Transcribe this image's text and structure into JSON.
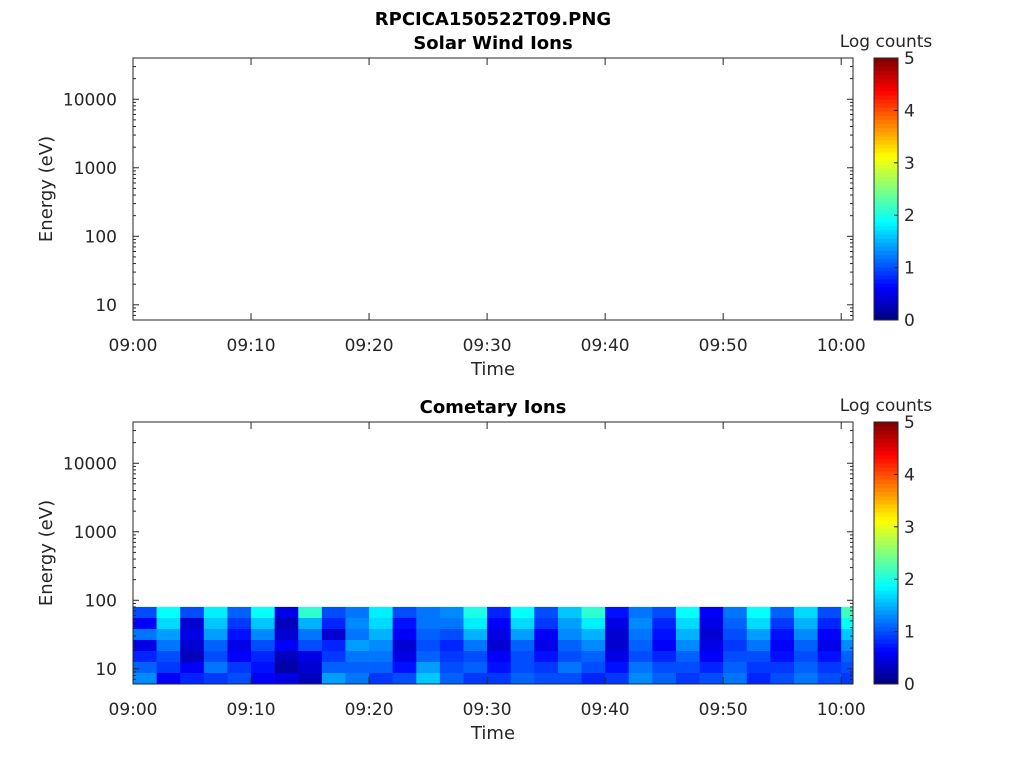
{
  "figure": {
    "filename": "RPCICA150522T09.PNG"
  },
  "chart_data": [
    {
      "type": "heatmap",
      "title": "Solar Wind Ions",
      "xlabel": "Time",
      "ylabel": "Energy (eV)",
      "x_ticks": [
        "09:00",
        "09:10",
        "09:20",
        "09:30",
        "09:40",
        "09:50",
        "10:00"
      ],
      "xlim": [
        "09:00",
        "10:01"
      ],
      "y_scale": "log",
      "y_ticks": [
        10,
        100,
        1000,
        10000
      ],
      "y_tick_labels": [
        "10",
        "100",
        "1000",
        "10000"
      ],
      "ylim": [
        6,
        40000
      ],
      "colorbar": {
        "label": "Log counts",
        "range": [
          0,
          5
        ],
        "ticks": [
          "0",
          "1",
          "2",
          "3",
          "4",
          "5"
        ],
        "colormap": "jet"
      },
      "data": "empty"
    },
    {
      "type": "heatmap",
      "title": "Cometary Ions",
      "xlabel": "Time",
      "ylabel": "Energy (eV)",
      "x_ticks": [
        "09:00",
        "09:10",
        "09:20",
        "09:30",
        "09:40",
        "09:50",
        "10:00"
      ],
      "xlim": [
        "09:00",
        "10:01"
      ],
      "y_scale": "log",
      "y_ticks": [
        10,
        100,
        1000,
        10000
      ],
      "y_tick_labels": [
        "10",
        "100",
        "1000",
        "10000"
      ],
      "ylim": [
        6,
        40000
      ],
      "colorbar": {
        "label": "Log counts",
        "range": [
          0,
          5
        ],
        "ticks": [
          "0",
          "1",
          "2",
          "3",
          "4",
          "5"
        ],
        "colormap": "jet"
      },
      "energy_max": 80,
      "columns": [
        {
          "t": "09:00",
          "c": [
            1.0,
            0.6,
            1.2,
            0.5,
            0.8,
            1.1,
            1.3
          ]
        },
        {
          "t": "09:02",
          "c": [
            1.9,
            1.7,
            1.4,
            1.2,
            1.0,
            0.9,
            0.6
          ]
        },
        {
          "t": "09:04",
          "c": [
            1.0,
            0.4,
            0.5,
            0.4,
            0.3,
            0.6,
            0.8
          ]
        },
        {
          "t": "09:06",
          "c": [
            1.8,
            1.6,
            1.4,
            1.1,
            1.0,
            1.2,
            0.9
          ]
        },
        {
          "t": "09:08",
          "c": [
            1.1,
            0.9,
            0.7,
            0.5,
            0.6,
            0.9,
            1.0
          ]
        },
        {
          "t": "09:10",
          "c": [
            1.9,
            1.6,
            1.3,
            1.0,
            0.8,
            0.7,
            0.6
          ]
        },
        {
          "t": "09:12",
          "c": [
            0.5,
            0.3,
            0.4,
            0.6,
            0.3,
            0.2,
            0.5
          ]
        },
        {
          "t": "09:14",
          "c": [
            2.1,
            1.5,
            1.2,
            1.0,
            0.5,
            0.4,
            0.3
          ]
        },
        {
          "t": "09:16",
          "c": [
            1.0,
            0.8,
            0.4,
            0.8,
            0.9,
            1.1,
            1.4
          ]
        },
        {
          "t": "09:18",
          "c": [
            1.2,
            1.3,
            1.2,
            1.4,
            1.2,
            1.1,
            1.2
          ]
        },
        {
          "t": "09:20",
          "c": [
            1.8,
            1.7,
            1.5,
            1.3,
            1.2,
            1.1,
            0.9
          ]
        },
        {
          "t": "09:22",
          "c": [
            1.0,
            0.7,
            0.6,
            0.4,
            0.5,
            0.7,
            1.0
          ]
        },
        {
          "t": "09:24",
          "c": [
            1.2,
            1.2,
            1.1,
            1.0,
            1.1,
            1.4,
            1.6
          ]
        },
        {
          "t": "09:26",
          "c": [
            1.3,
            1.2,
            1.0,
            0.8,
            0.9,
            1.0,
            1.1
          ]
        },
        {
          "t": "09:28",
          "c": [
            2.0,
            1.8,
            1.5,
            1.2,
            1.0,
            1.1,
            0.9
          ]
        },
        {
          "t": "09:30",
          "c": [
            0.8,
            0.6,
            0.5,
            0.4,
            0.6,
            0.7,
            0.9
          ]
        },
        {
          "t": "09:32",
          "c": [
            1.9,
            1.7,
            1.4,
            1.1,
            1.0,
            1.0,
            1.1
          ]
        },
        {
          "t": "09:34",
          "c": [
            1.0,
            0.9,
            0.6,
            0.5,
            0.7,
            0.9,
            1.0
          ]
        },
        {
          "t": "09:36",
          "c": [
            1.6,
            1.4,
            1.3,
            1.1,
            1.0,
            1.2,
            1.0
          ]
        },
        {
          "t": "09:38",
          "c": [
            2.1,
            1.8,
            1.5,
            1.3,
            1.1,
            1.0,
            0.8
          ]
        },
        {
          "t": "09:40",
          "c": [
            0.7,
            0.5,
            0.4,
            0.4,
            0.5,
            0.7,
            0.9
          ]
        },
        {
          "t": "09:42",
          "c": [
            1.2,
            1.3,
            1.2,
            1.1,
            1.0,
            1.2,
            1.3
          ]
        },
        {
          "t": "09:44",
          "c": [
            1.0,
            0.8,
            0.7,
            0.6,
            0.8,
            1.0,
            1.1
          ]
        },
        {
          "t": "09:46",
          "c": [
            1.9,
            1.7,
            1.5,
            1.3,
            1.1,
            1.0,
            0.9
          ]
        },
        {
          "t": "09:48",
          "c": [
            0.6,
            0.5,
            0.4,
            0.5,
            0.6,
            0.8,
            1.0
          ]
        },
        {
          "t": "09:50",
          "c": [
            1.2,
            1.1,
            1.0,
            0.9,
            1.0,
            1.1,
            1.2
          ]
        },
        {
          "t": "09:52",
          "c": [
            1.9,
            1.7,
            1.4,
            1.2,
            1.0,
            0.9,
            0.8
          ]
        },
        {
          "t": "09:54",
          "c": [
            1.1,
            0.9,
            0.7,
            0.6,
            0.7,
            0.9,
            1.0
          ]
        },
        {
          "t": "09:56",
          "c": [
            1.7,
            1.5,
            1.3,
            1.1,
            1.0,
            1.1,
            1.2
          ]
        },
        {
          "t": "09:58",
          "c": [
            1.0,
            0.8,
            0.6,
            0.5,
            0.7,
            0.9,
            1.0
          ]
        },
        {
          "t": "10:00",
          "c": [
            2.2,
            1.9,
            1.6,
            1.3,
            1.1,
            1.0,
            0.9
          ]
        }
      ]
    }
  ]
}
